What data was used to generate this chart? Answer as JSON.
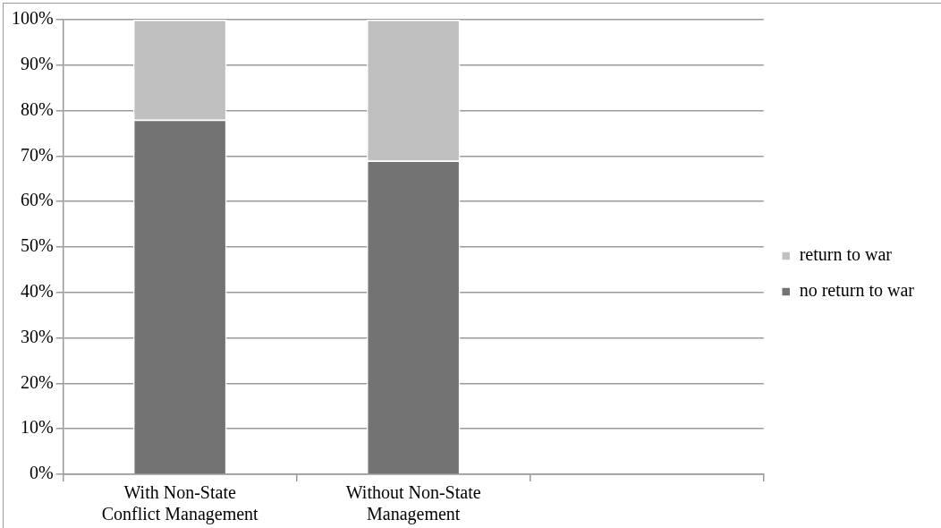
{
  "chart_data": {
    "type": "bar",
    "stacked": true,
    "categories": [
      "With Non-State Conflict Management",
      "Without Non-State Management",
      null
    ],
    "series": [
      {
        "name": "no return to war",
        "color": "#737373",
        "values": [
          78,
          69,
          null
        ]
      },
      {
        "name": "return to war",
        "color": "#c0c0c0",
        "values": [
          22,
          31,
          null
        ]
      }
    ],
    "ylim": [
      0,
      100
    ],
    "yticks": [
      {
        "value": 0,
        "label": "0%"
      },
      {
        "value": 10,
        "label": "10%"
      },
      {
        "value": 20,
        "label": "20%"
      },
      {
        "value": 30,
        "label": "30%"
      },
      {
        "value": 40,
        "label": "40%"
      },
      {
        "value": 50,
        "label": "50%"
      },
      {
        "value": 60,
        "label": "60%"
      },
      {
        "value": 70,
        "label": "70%"
      },
      {
        "value": 80,
        "label": "80%"
      },
      {
        "value": 90,
        "label": "90%"
      },
      {
        "value": 100,
        "label": "100%"
      }
    ],
    "grid": "y",
    "legend": "right"
  }
}
